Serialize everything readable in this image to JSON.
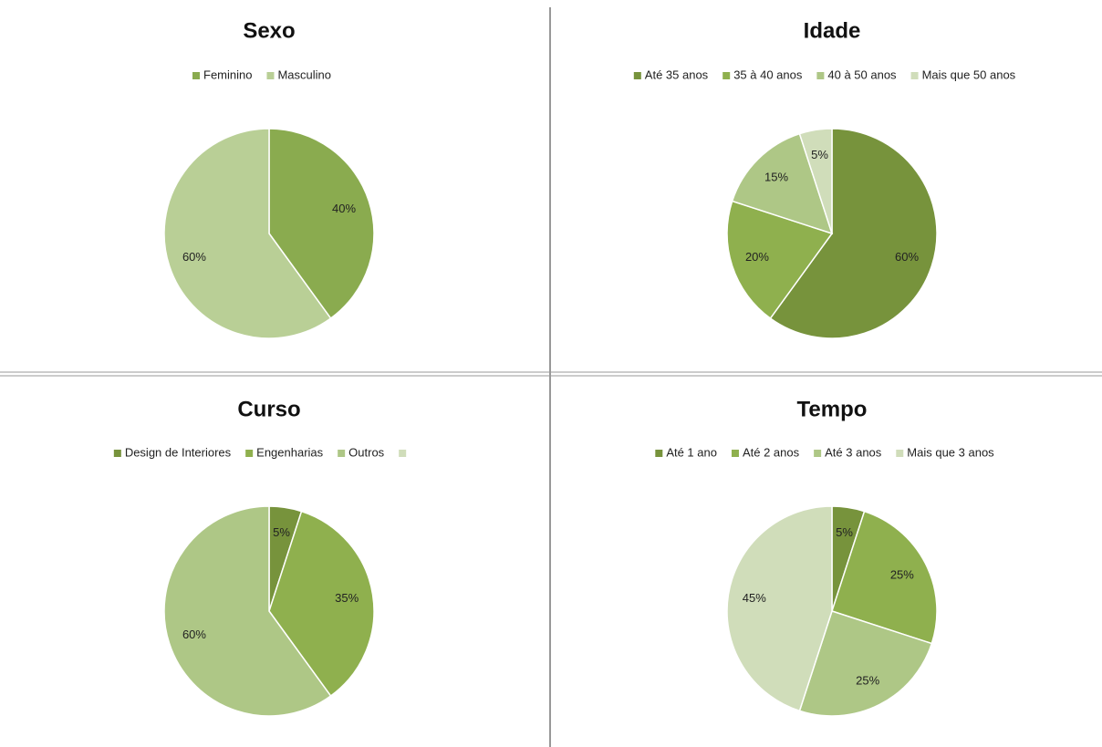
{
  "chart_data": [
    {
      "type": "pie",
      "title": "Sexo",
      "categories": [
        "Feminino",
        "Masculino"
      ],
      "values": [
        40,
        60
      ],
      "value_labels": [
        "40%",
        "60%"
      ],
      "colors": [
        "#8aab4f",
        "#b9cf96"
      ]
    },
    {
      "type": "pie",
      "title": "Idade",
      "categories": [
        "Até 35 anos",
        "35 à 40 anos",
        "40 à 50 anos",
        "Mais que 50 anos"
      ],
      "values": [
        60,
        20,
        15,
        5
      ],
      "value_labels": [
        "60%",
        "20%",
        "15%",
        "5%"
      ],
      "colors": [
        "#77933c",
        "#8fb04e",
        "#aec786",
        "#d0ddba"
      ]
    },
    {
      "type": "pie",
      "title": "Curso",
      "categories": [
        "Design de Interiores",
        "Engenharias",
        "Outros",
        null
      ],
      "values": [
        5,
        35,
        60,
        0
      ],
      "value_labels": [
        "5%",
        "35%",
        "60%",
        null
      ],
      "colors": [
        "#77933c",
        "#8fb04e",
        "#aec786",
        "#d0ddba"
      ]
    },
    {
      "type": "pie",
      "title": "Tempo",
      "categories": [
        "Até 1 ano",
        "Até 2 anos",
        "Até 3 anos",
        "Mais que 3 anos"
      ],
      "values": [
        5,
        25,
        25,
        45
      ],
      "value_labels": [
        "5%",
        "25%",
        "25%",
        "45%"
      ],
      "colors": [
        "#77933c",
        "#8fb04e",
        "#aec786",
        "#d0ddba"
      ]
    }
  ]
}
